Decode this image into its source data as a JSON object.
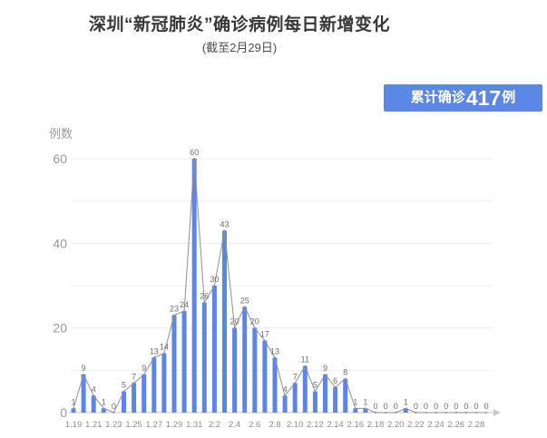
{
  "header": {
    "title": "深圳“新冠肺炎”确诊病例每日新增变化",
    "subtitle": "(截至2月29日)"
  },
  "badge": {
    "prefix": "累计确诊",
    "value": "417",
    "suffix": "例",
    "bg_color": "#5b87e5",
    "text_color": "#ffffff"
  },
  "chart_data": {
    "type": "bar",
    "title": "深圳“新冠肺炎”确诊病例每日新增变化",
    "subtitle": "(截至2月29日)",
    "ylabel": "例数",
    "xlabel": "",
    "ylim": [
      0,
      60
    ],
    "yticks": [
      0,
      20,
      40,
      60
    ],
    "grid_step": 10,
    "grid": "horizontal",
    "legend": "none",
    "categories": [
      "1.19",
      "1.20",
      "1.21",
      "1.22",
      "1.23",
      "1.24",
      "1.25",
      "1.26",
      "1.27",
      "1.28",
      "1.29",
      "1.30",
      "1.31",
      "2.1",
      "2.2",
      "2.3",
      "2.4",
      "2.5",
      "2.6",
      "2.7",
      "2.8",
      "2.9",
      "2.10",
      "2.11",
      "2.12",
      "2.13",
      "2.14",
      "2.15",
      "2.16",
      "2.17",
      "2.18",
      "2.19",
      "2.20",
      "2.21",
      "2.22",
      "2.23",
      "2.24",
      "2.25",
      "2.26",
      "2.27",
      "2.28",
      "2.29"
    ],
    "values": [
      1,
      9,
      4,
      1,
      0,
      5,
      7,
      9,
      13,
      14,
      23,
      24,
      60,
      26,
      30,
      43,
      20,
      25,
      20,
      17,
      13,
      4,
      7,
      11,
      5,
      9,
      6,
      8,
      1,
      1,
      0,
      0,
      0,
      1,
      0,
      0,
      0,
      0,
      0,
      0,
      0,
      0
    ],
    "x_label_every": 2,
    "total_confirmed": 417,
    "bar_color": "#5b86e8",
    "line_color": "#8f8f8f",
    "value_label_color": "#6d6d6d",
    "tick_label_color": "#9a9a9a",
    "axis_color": "#c9c9c9",
    "gridline_color": "#efefef"
  }
}
